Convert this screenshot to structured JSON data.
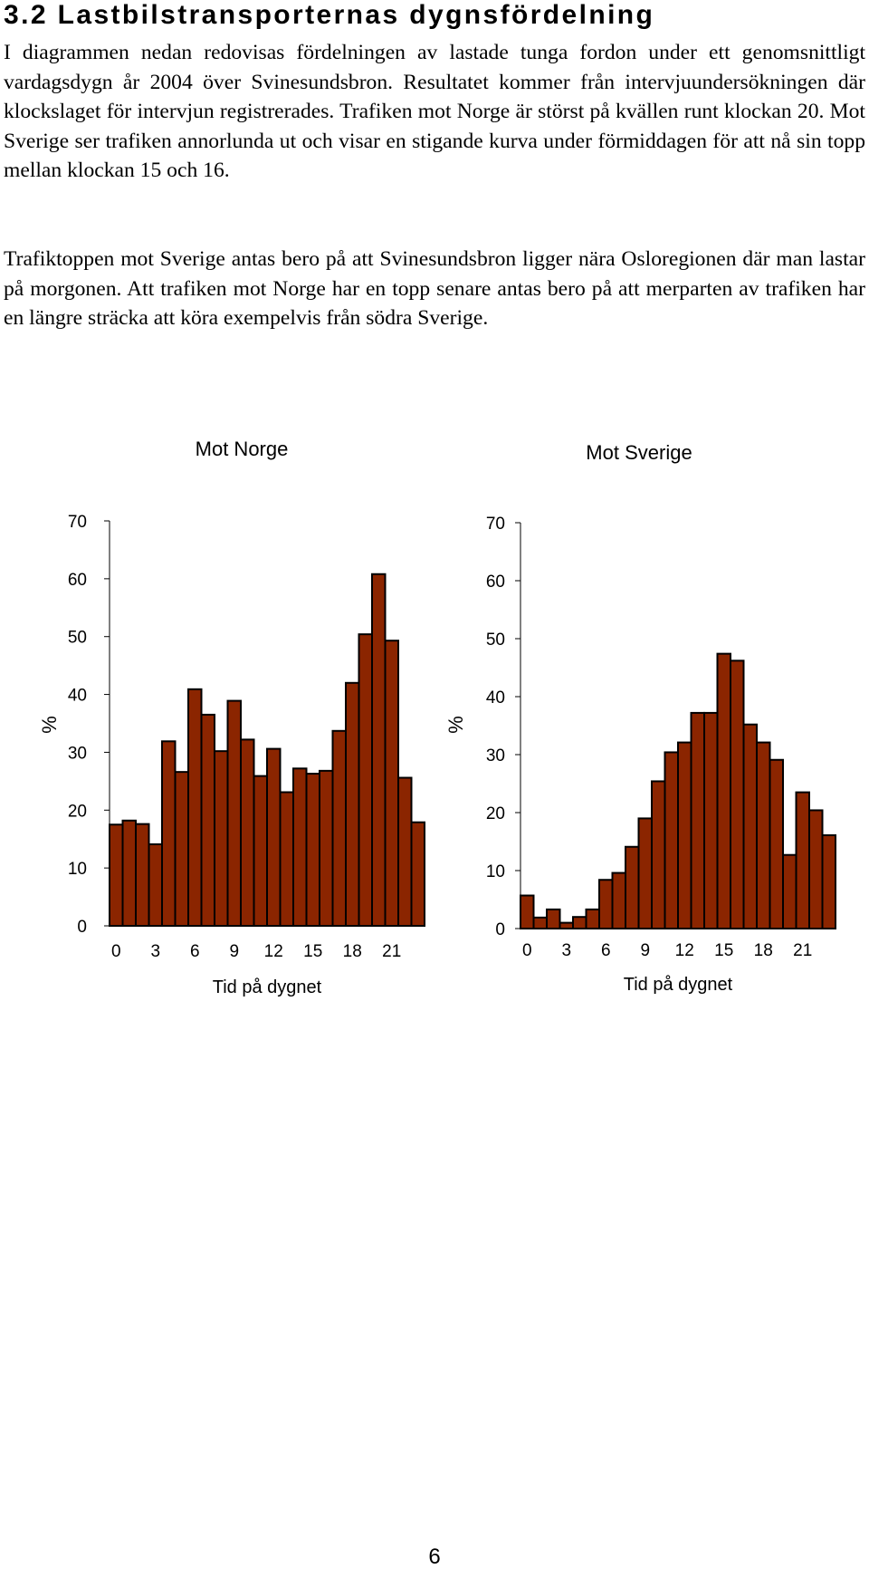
{
  "heading": "3.2 Lastbilstransporternas dygnsfördelning",
  "paragraphs": [
    "I diagrammen nedan redovisas fördelningen av lastade tunga fordon under ett genomsnittligt vardagsdygn år 2004 över Svinesundsbron. Resultatet kommer från intervjuundersökningen där klockslaget för intervjun registrerades. Trafiken mot Norge är störst på kvällen runt klockan 20. Mot Sverige ser trafiken annorlunda ut och visar en stigande kurva under förmiddagen för att nå sin topp mellan klockan 15 och 16.",
    "Trafiktoppen mot Sverige antas bero på att Svinesundsbron ligger nära Osloregionen där man lastar på morgonen. Att trafiken mot Norge har en topp senare antas bero på att merparten av trafiken har en längre sträcka att köra exempelvis från södra Sverige."
  ],
  "page_number": "6",
  "bar_color": "#8B2500",
  "chart_data": [
    {
      "type": "bar",
      "title": "Mot Norge",
      "xlabel": "Tid på dygnet",
      "ylabel": "%",
      "ylim": [
        0,
        70
      ],
      "yticks": [
        0,
        10,
        20,
        30,
        40,
        50,
        60,
        70
      ],
      "categories": [
        "0",
        "1",
        "2",
        "3",
        "4",
        "5",
        "6",
        "7",
        "8",
        "9",
        "10",
        "11",
        "12",
        "13",
        "14",
        "15",
        "16",
        "17",
        "18",
        "19",
        "20",
        "21",
        "22",
        "23"
      ],
      "xtick_labels": [
        "0",
        "3",
        "6",
        "9",
        "12",
        "15",
        "18",
        "21"
      ],
      "values": [
        17.5,
        18.2,
        17.6,
        14.1,
        31.9,
        26.6,
        40.9,
        36.5,
        30.2,
        38.9,
        32.2,
        25.9,
        30.6,
        23.1,
        27.2,
        26.3,
        26.8,
        33.7,
        42,
        50.4,
        60.8,
        49.3,
        25.6,
        17.9
      ],
      "grid": false
    },
    {
      "type": "bar",
      "title": "Mot Sverige",
      "xlabel": "Tid på dygnet",
      "ylabel": "%",
      "ylim": [
        0,
        70
      ],
      "yticks": [
        0,
        10,
        20,
        30,
        40,
        50,
        60,
        70
      ],
      "categories": [
        "0",
        "1",
        "2",
        "3",
        "4",
        "5",
        "6",
        "7",
        "8",
        "9",
        "10",
        "11",
        "12",
        "13",
        "14",
        "15",
        "16",
        "17",
        "18",
        "19",
        "20",
        "21",
        "22",
        "23"
      ],
      "xtick_labels": [
        "0",
        "3",
        "6",
        "9",
        "12",
        "15",
        "18",
        "21"
      ],
      "values": [
        5.7,
        1.9,
        3.3,
        1,
        2,
        3.3,
        8.4,
        9.6,
        14.1,
        19,
        25.4,
        30.4,
        32.1,
        37.2,
        37.2,
        47.4,
        46.2,
        35.2,
        32.1,
        29.1,
        12.7,
        23.5,
        20.4,
        16.1
      ],
      "grid": false
    }
  ]
}
